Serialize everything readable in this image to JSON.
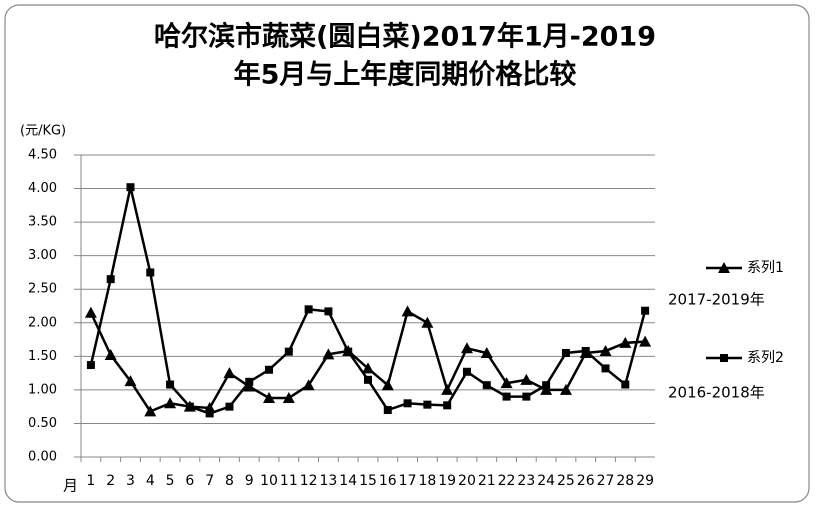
{
  "chart_data": {
    "type": "line",
    "title_lines": [
      "哈尔滨市蔬菜(圆白菜)2017年1月-2019",
      "年5月与上年度同期价格比较"
    ],
    "y_label": "(元/KG)",
    "x_label": "月",
    "categories": [
      "1",
      "2",
      "3",
      "4",
      "5",
      "6",
      "7",
      "8",
      "9",
      "10",
      "11",
      "12",
      "13",
      "14",
      "15",
      "16",
      "17",
      "18",
      "19",
      "20",
      "21",
      "22",
      "23",
      "24",
      "25",
      "26",
      "27",
      "28",
      "29"
    ],
    "series": [
      {
        "name": "系列1",
        "color": "#000000",
        "marker": "triangle",
        "values": [
          2.15,
          1.52,
          1.13,
          0.68,
          0.8,
          0.75,
          0.73,
          1.25,
          1.05,
          0.88,
          0.88,
          1.07,
          1.53,
          1.58,
          1.32,
          1.07,
          2.17,
          2.0,
          1.0,
          1.62,
          1.55,
          1.1,
          1.15,
          1.0,
          1.0,
          1.55,
          1.58,
          1.7,
          1.72
        ]
      },
      {
        "name": "系列2",
        "color": "#000000",
        "marker": "square",
        "values": [
          1.37,
          2.65,
          4.02,
          2.75,
          1.08,
          0.75,
          0.65,
          0.75,
          1.12,
          1.3,
          1.57,
          2.2,
          2.17,
          1.57,
          1.15,
          0.7,
          0.8,
          0.78,
          0.77,
          1.27,
          1.07,
          0.9,
          0.9,
          1.07,
          1.55,
          1.58,
          1.32,
          1.08,
          2.18
        ]
      }
    ],
    "annotations": [
      "2017-2019年",
      "2016-2018年"
    ],
    "ylim": [
      0,
      4.5
    ],
    "yticks": [
      {
        "value": 0,
        "label": "0.00"
      },
      {
        "value": 0.5,
        "label": "0.50"
      },
      {
        "value": 1,
        "label": "1.00"
      },
      {
        "value": 1.5,
        "label": "1.50"
      },
      {
        "value": 2,
        "label": "2.00"
      },
      {
        "value": 2.5,
        "label": "2.50"
      },
      {
        "value": 3,
        "label": "3.00"
      },
      {
        "value": 3.5,
        "label": "3.50"
      },
      {
        "value": 4,
        "label": "4.00"
      },
      {
        "value": 4.5,
        "label": "4.50"
      }
    ],
    "grid": true,
    "legend": "right"
  }
}
